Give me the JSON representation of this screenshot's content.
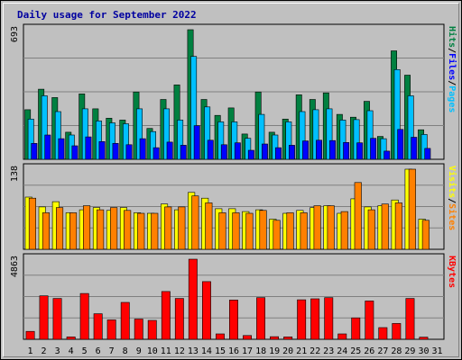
{
  "chart_data": {
    "type": "bar",
    "title": "Daily usage for September 2022",
    "days": [
      "1",
      "2",
      "3",
      "4",
      "5",
      "6",
      "7",
      "8",
      "9",
      "10",
      "11",
      "12",
      "13",
      "14",
      "15",
      "16",
      "17",
      "18",
      "19",
      "20",
      "21",
      "22",
      "23",
      "24",
      "25",
      "26",
      "27",
      "28",
      "29",
      "30",
      "31"
    ],
    "weekend_days": [
      "3",
      "4",
      "10",
      "11",
      "17",
      "18",
      "24",
      "25",
      "31"
    ],
    "colors": {
      "hits": "#008040",
      "files": "#00c0ff",
      "sites": "#ff8000",
      "visits": "#ffff00",
      "kbytes": "#ff0000",
      "weekend_label": "#008040",
      "title": "#0000a0"
    },
    "panels": [
      {
        "id": "hits-files",
        "max_label": "693",
        "ylim": [
          0,
          693
        ],
        "label_parts": [
          {
            "text": "Hits",
            "color": "#008040"
          },
          {
            "text": "/",
            "color": "#000000"
          },
          {
            "text": "Files",
            "color": "#0000ff"
          },
          {
            "text": "/",
            "color": "#000000"
          },
          {
            "text": "Pages",
            "color": "#00c0ff"
          }
        ],
        "series": [
          {
            "name": "Hits",
            "color": "#008040",
            "values": [
              265,
              375,
              330,
              145,
              350,
              270,
              220,
              210,
              360,
              165,
              320,
              398,
              693,
              320,
              235,
              275,
              135,
              360,
              145,
              215,
              345,
              320,
              355,
              240,
              225,
              310,
              122,
              580,
              450,
              158,
              0
            ]
          },
          {
            "name": "Files",
            "color": "#00c0ff",
            "values": [
              215,
              340,
              255,
              130,
              270,
              205,
              195,
              190,
              270,
              148,
              270,
              210,
              550,
              280,
              200,
              200,
              112,
              240,
              130,
              200,
              255,
              265,
              270,
              210,
              212,
              260,
              110,
              480,
              340,
              133,
              0
            ]
          },
          {
            "name": "Pages",
            "color": "#0000ff",
            "values": [
              85,
              130,
              110,
              72,
              120,
              95,
              85,
              78,
              110,
              62,
              92,
              75,
              180,
              102,
              78,
              88,
              48,
              82,
              62,
              75,
              98,
              102,
              100,
              90,
              88,
              112,
              44,
              160,
              118,
              58,
              0
            ]
          }
        ]
      },
      {
        "id": "visits-sites",
        "max_label": "138",
        "ylim": [
          0,
          138
        ],
        "label_parts": [
          {
            "text": "Visits",
            "color": "#ffff00"
          },
          {
            "text": "/",
            "color": "#000000"
          },
          {
            "text": "Sites",
            "color": "#ff8000"
          }
        ],
        "series": [
          {
            "name": "Visits",
            "color": "#ffff00",
            "values": [
              90,
              73,
              82,
              63,
              68,
              72,
              67,
              72,
              63,
              62,
              78,
              68,
              98,
              88,
              70,
              70,
              65,
              68,
              52,
              62,
              67,
              72,
              75,
              62,
              87,
              73,
              75,
              85,
              138,
              52,
              0
            ]
          },
          {
            "name": "Sites",
            "color": "#ff8000",
            "values": [
              88,
              63,
              72,
              63,
              75,
              68,
              72,
              67,
              62,
              62,
              73,
              73,
              92,
              80,
              63,
              63,
              62,
              67,
              50,
              63,
              63,
              75,
              75,
              65,
              115,
              68,
              78,
              80,
              138,
              50,
              0
            ]
          }
        ]
      },
      {
        "id": "kbytes",
        "max_label": "4863",
        "ylim": [
          0,
          4863
        ],
        "label_parts": [
          {
            "text": "KBytes",
            "color": "#ff0000"
          }
        ],
        "series": [
          {
            "name": "KBytes",
            "color": "#ff0000",
            "values": [
              480,
              2640,
              2480,
              150,
              2780,
              1550,
              1180,
              2240,
              1230,
              1150,
              2900,
              2480,
              4863,
              3500,
              330,
              2380,
              230,
              2530,
              160,
              150,
              2400,
              2460,
              2530,
              330,
              1300,
              2330,
              710,
              960,
              2480,
              130,
              0
            ]
          }
        ]
      }
    ]
  }
}
